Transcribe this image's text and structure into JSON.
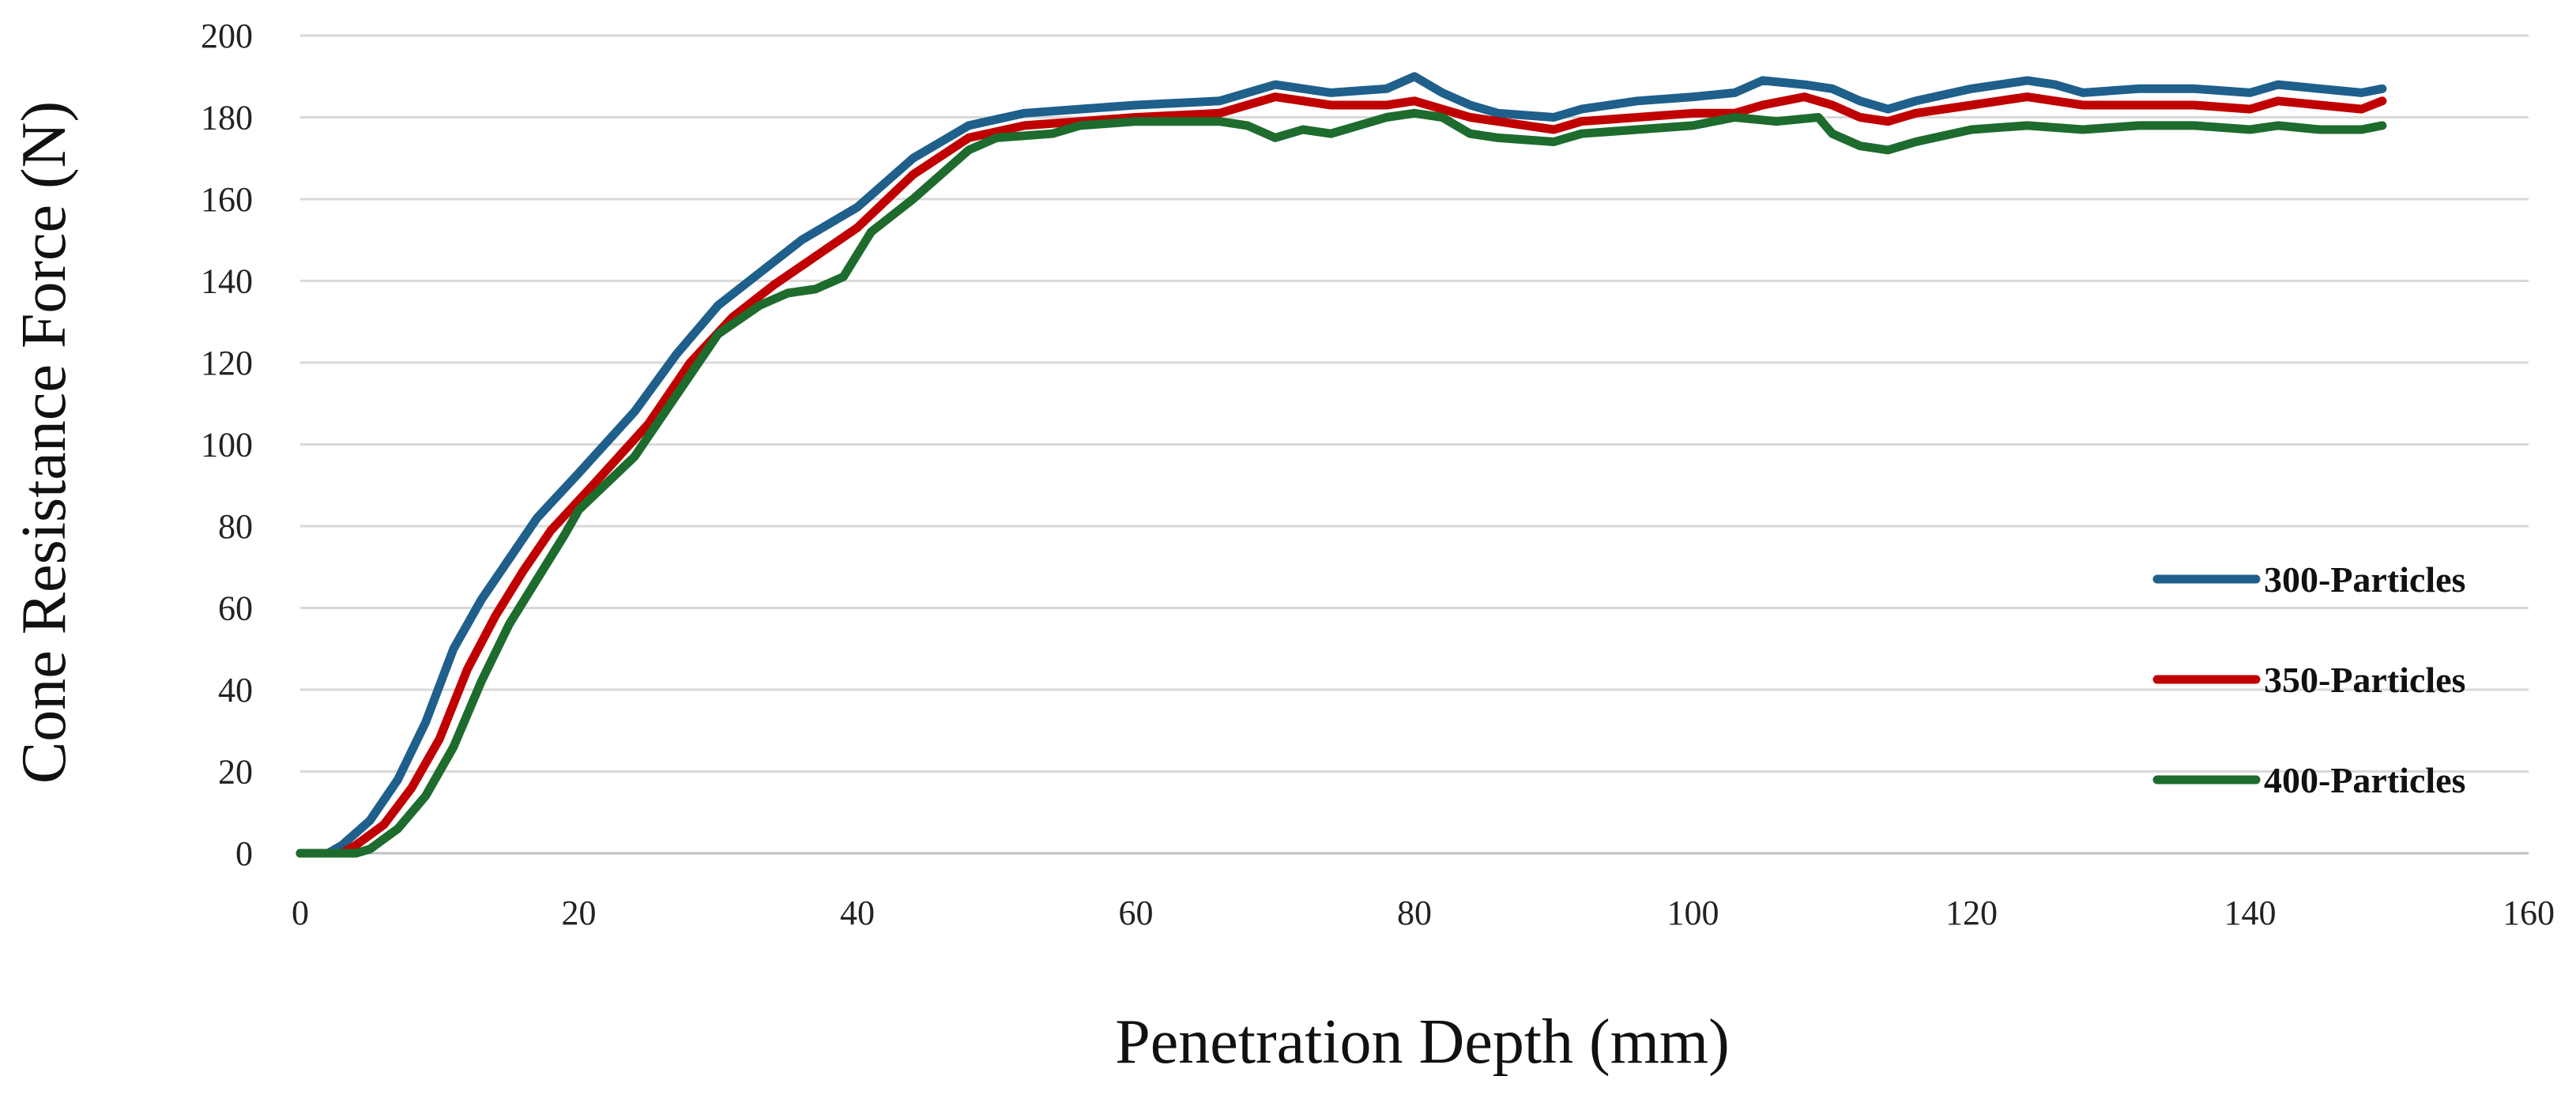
{
  "chart_data": {
    "type": "line",
    "title": "",
    "xlabel": "Penetration Depth (mm)",
    "ylabel": "Cone Resistance Force (N)",
    "xlim": [
      0,
      160
    ],
    "ylim": [
      0,
      200
    ],
    "xticks": [
      0,
      20,
      40,
      60,
      80,
      100,
      120,
      140,
      160
    ],
    "yticks": [
      0,
      20,
      40,
      60,
      80,
      100,
      120,
      140,
      160,
      180,
      200
    ],
    "grid": true,
    "legend_position": "right",
    "series": [
      {
        "name": "300-Particles",
        "color": "#1f5f8b",
        "points": [
          [
            0,
            0
          ],
          [
            2,
            0
          ],
          [
            3,
            2
          ],
          [
            5,
            8
          ],
          [
            7,
            18
          ],
          [
            9,
            32
          ],
          [
            11,
            50
          ],
          [
            13,
            62
          ],
          [
            15,
            72
          ],
          [
            17,
            82
          ],
          [
            20,
            93
          ],
          [
            24,
            108
          ],
          [
            27,
            122
          ],
          [
            30,
            134
          ],
          [
            33,
            142
          ],
          [
            36,
            150
          ],
          [
            40,
            158
          ],
          [
            44,
            170
          ],
          [
            48,
            178
          ],
          [
            52,
            181
          ],
          [
            56,
            182
          ],
          [
            60,
            183
          ],
          [
            66,
            184
          ],
          [
            70,
            188
          ],
          [
            74,
            186
          ],
          [
            78,
            187
          ],
          [
            80,
            190
          ],
          [
            82,
            186
          ],
          [
            84,
            183
          ],
          [
            86,
            181
          ],
          [
            90,
            180
          ],
          [
            92,
            182
          ],
          [
            96,
            184
          ],
          [
            100,
            185
          ],
          [
            103,
            186
          ],
          [
            105,
            189
          ],
          [
            108,
            188
          ],
          [
            110,
            187
          ],
          [
            112,
            184
          ],
          [
            114,
            182
          ],
          [
            116,
            184
          ],
          [
            120,
            187
          ],
          [
            124,
            189
          ],
          [
            126,
            188
          ],
          [
            128,
            186
          ],
          [
            132,
            187
          ],
          [
            136,
            187
          ],
          [
            140,
            186
          ],
          [
            142,
            188
          ],
          [
            145,
            187
          ],
          [
            148,
            186
          ],
          [
            149.5,
            187
          ]
        ]
      },
      {
        "name": "350-Particles",
        "color": "#c00000",
        "points": [
          [
            0,
            0
          ],
          [
            3,
            0
          ],
          [
            4,
            2
          ],
          [
            6,
            7
          ],
          [
            8,
            16
          ],
          [
            10,
            28
          ],
          [
            12,
            45
          ],
          [
            14,
            58
          ],
          [
            16,
            69
          ],
          [
            18,
            79
          ],
          [
            21,
            90
          ],
          [
            25,
            105
          ],
          [
            28,
            120
          ],
          [
            31,
            131
          ],
          [
            34,
            139
          ],
          [
            37,
            146
          ],
          [
            40,
            153
          ],
          [
            44,
            166
          ],
          [
            48,
            175
          ],
          [
            52,
            178
          ],
          [
            56,
            179
          ],
          [
            60,
            180
          ],
          [
            66,
            181
          ],
          [
            70,
            185
          ],
          [
            74,
            183
          ],
          [
            78,
            183
          ],
          [
            80,
            184
          ],
          [
            82,
            182
          ],
          [
            84,
            180
          ],
          [
            86,
            179
          ],
          [
            90,
            177
          ],
          [
            92,
            179
          ],
          [
            96,
            180
          ],
          [
            100,
            181
          ],
          [
            103,
            181
          ],
          [
            105,
            183
          ],
          [
            108,
            185
          ],
          [
            110,
            183
          ],
          [
            112,
            180
          ],
          [
            114,
            179
          ],
          [
            116,
            181
          ],
          [
            120,
            183
          ],
          [
            124,
            185
          ],
          [
            126,
            184
          ],
          [
            128,
            183
          ],
          [
            132,
            183
          ],
          [
            136,
            183
          ],
          [
            140,
            182
          ],
          [
            142,
            184
          ],
          [
            145,
            183
          ],
          [
            148,
            182
          ],
          [
            149.5,
            184
          ]
        ]
      },
      {
        "name": "400-Particles",
        "color": "#1e6b2e",
        "points": [
          [
            0,
            0
          ],
          [
            4,
            0
          ],
          [
            5,
            1
          ],
          [
            7,
            6
          ],
          [
            9,
            14
          ],
          [
            11,
            26
          ],
          [
            13,
            42
          ],
          [
            15,
            56
          ],
          [
            17,
            67
          ],
          [
            19,
            78
          ],
          [
            20,
            84
          ],
          [
            24,
            97
          ],
          [
            27,
            112
          ],
          [
            30,
            127
          ],
          [
            33,
            134
          ],
          [
            35,
            137
          ],
          [
            37,
            138
          ],
          [
            39,
            141
          ],
          [
            41,
            152
          ],
          [
            44,
            160
          ],
          [
            48,
            172
          ],
          [
            50,
            175
          ],
          [
            54,
            176
          ],
          [
            56,
            178
          ],
          [
            60,
            179
          ],
          [
            66,
            179
          ],
          [
            68,
            178
          ],
          [
            70,
            175
          ],
          [
            72,
            177
          ],
          [
            74,
            176
          ],
          [
            78,
            180
          ],
          [
            80,
            181
          ],
          [
            82,
            180
          ],
          [
            84,
            176
          ],
          [
            86,
            175
          ],
          [
            90,
            174
          ],
          [
            92,
            176
          ],
          [
            96,
            177
          ],
          [
            100,
            178
          ],
          [
            103,
            180
          ],
          [
            106,
            179
          ],
          [
            109,
            180
          ],
          [
            110,
            176
          ],
          [
            112,
            173
          ],
          [
            114,
            172
          ],
          [
            116,
            174
          ],
          [
            120,
            177
          ],
          [
            124,
            178
          ],
          [
            128,
            177
          ],
          [
            132,
            178
          ],
          [
            136,
            178
          ],
          [
            140,
            177
          ],
          [
            142,
            178
          ],
          [
            145,
            177
          ],
          [
            148,
            177
          ],
          [
            149.5,
            178
          ]
        ]
      }
    ]
  }
}
